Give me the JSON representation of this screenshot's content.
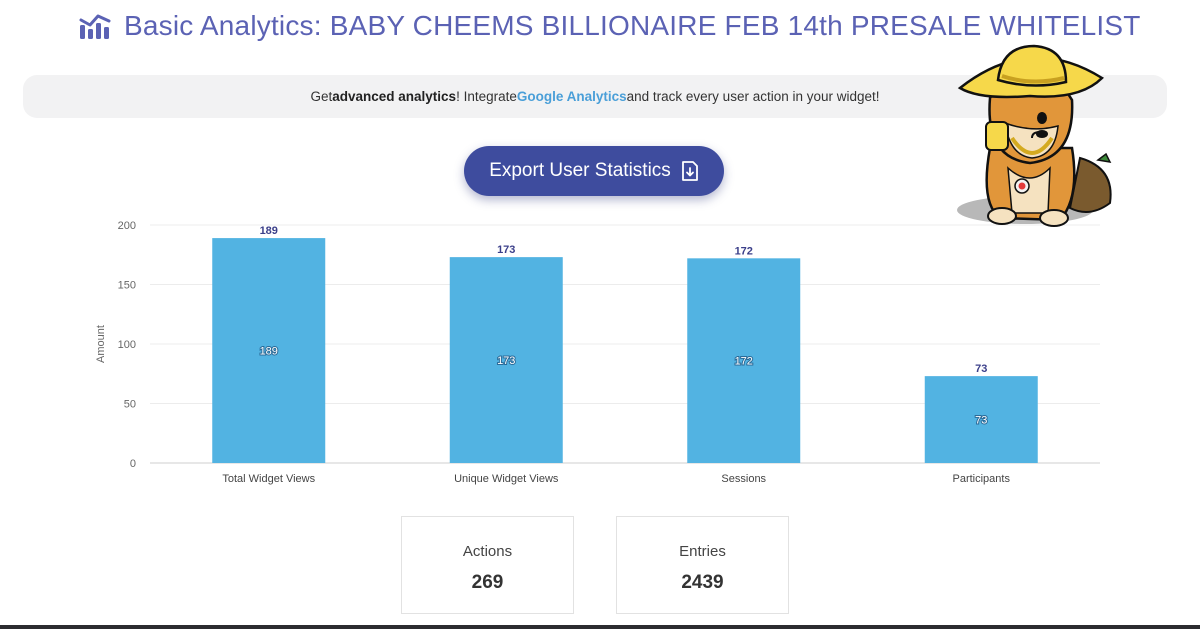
{
  "header": {
    "title": "Basic Analytics: BABY CHEEMS BILLIONAIRE FEB 14th PRESALE WHITELIST",
    "icon": "analytics-chart-icon"
  },
  "banner": {
    "prefix": "Get ",
    "bold": "advanced analytics",
    "middle": "! Integrate ",
    "link": "Google Analytics",
    "suffix": " and track every user action in your widget!"
  },
  "export_button": {
    "label": "Export User Statistics",
    "icon": "file-download-icon"
  },
  "chart_data": {
    "type": "bar",
    "categories": [
      "Total Widget Views",
      "Unique Widget Views",
      "Sessions",
      "Participants"
    ],
    "values": [
      189,
      173,
      172,
      73
    ],
    "ylabel": "Amount",
    "ylim": [
      0,
      200
    ],
    "yticks": [
      0,
      50,
      100,
      150,
      200
    ],
    "bar_color": "#52b3e2",
    "grid": true
  },
  "stats": [
    {
      "label": "Actions",
      "value": "269"
    },
    {
      "label": "Entries",
      "value": "2439"
    }
  ],
  "mascot": {
    "icon": "cheems-dog-mascot-icon"
  }
}
